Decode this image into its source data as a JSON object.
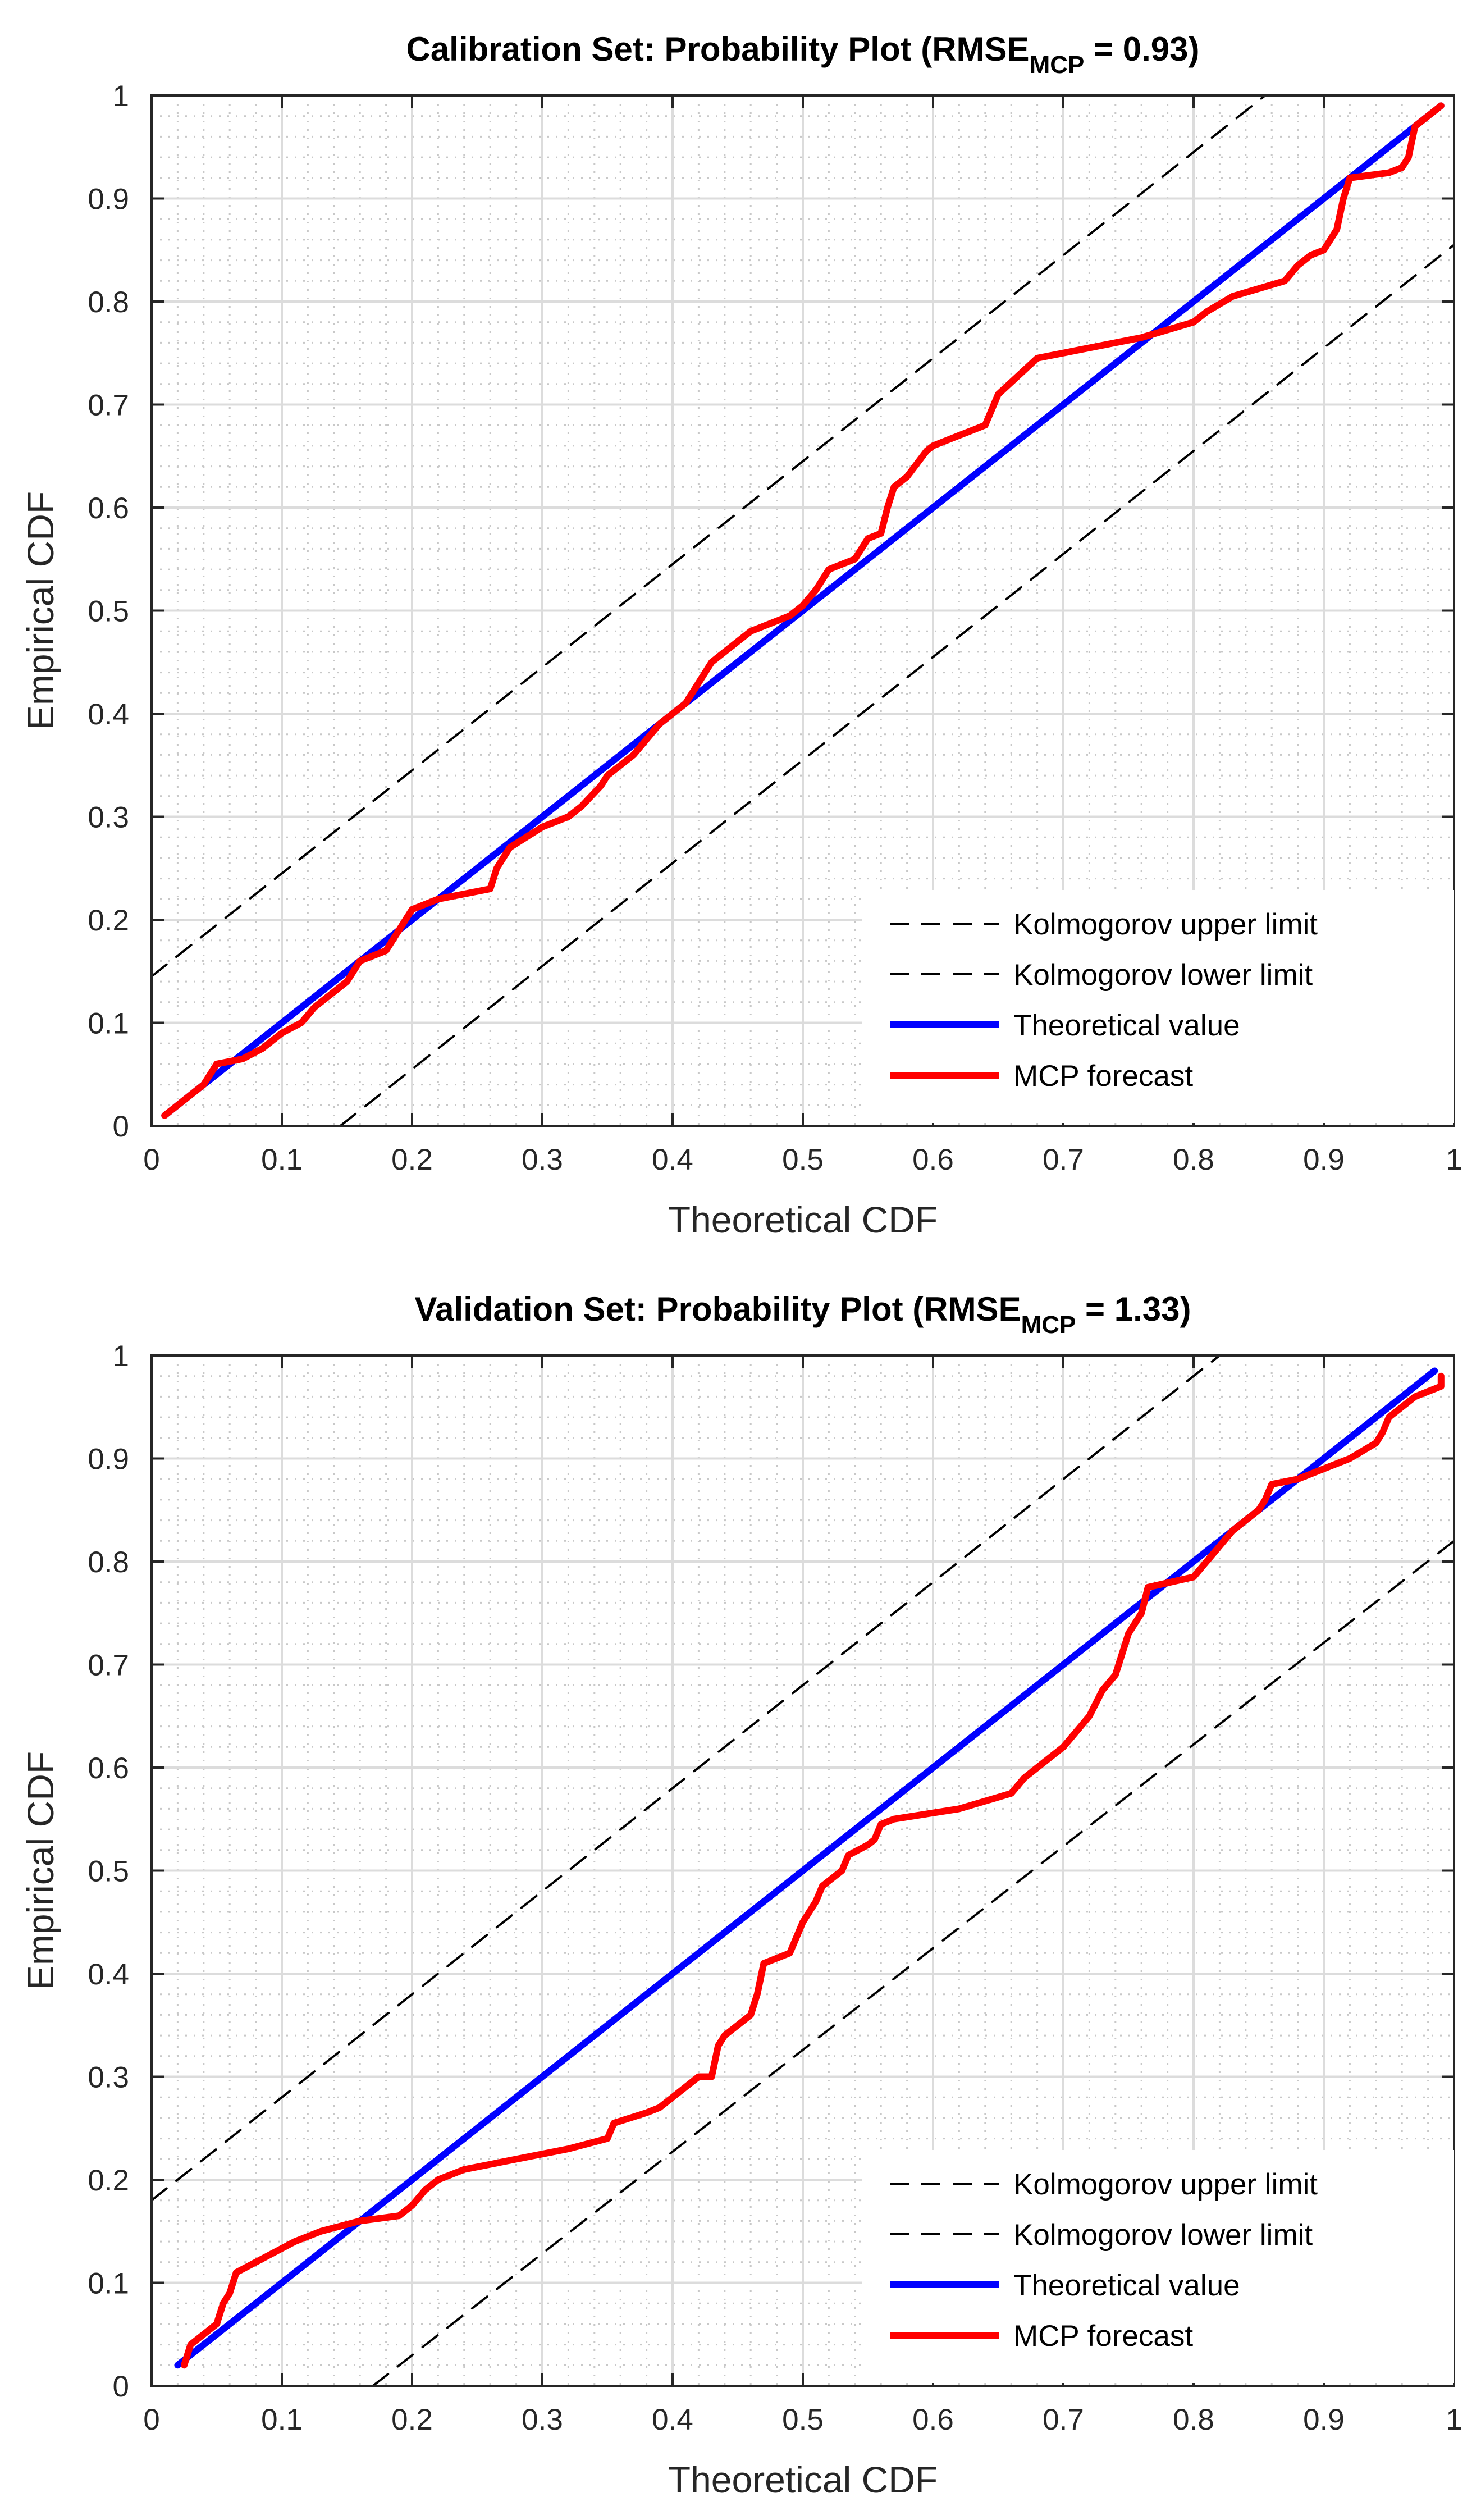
{
  "chart_data": [
    {
      "type": "line",
      "title": "Calibration Set: Probability Plot (RMSE",
      "title_sub": "MCP",
      "title_tail": " = 0.93)",
      "xlabel": "Theoretical CDF",
      "ylabel": "Empirical CDF",
      "xlim": [
        0,
        1
      ],
      "ylim": [
        0,
        1
      ],
      "xticks": [
        "0",
        "0.1",
        "0.2",
        "0.3",
        "0.4",
        "0.5",
        "0.6",
        "0.7",
        "0.8",
        "0.9",
        "1"
      ],
      "yticks": [
        "0",
        "0.1",
        "0.2",
        "0.3",
        "0.4",
        "0.5",
        "0.6",
        "0.7",
        "0.8",
        "0.9",
        "1"
      ],
      "grid": true,
      "legend_position": "bottom-right",
      "series": [
        {
          "name": "Kolmogorov upper limit",
          "color": "#000000",
          "style": "dashed",
          "x": [
            0,
            0.855
          ],
          "y": [
            0.145,
            1.0
          ]
        },
        {
          "name": "Kolmogorov lower limit",
          "color": "#000000",
          "style": "dashed",
          "x": [
            0.145,
            1.0
          ],
          "y": [
            0.0,
            0.855
          ]
        },
        {
          "name": "Theoretical value",
          "color": "#0000ff",
          "style": "solid",
          "x": [
            0.01,
            0.99
          ],
          "y": [
            0.01,
            0.99
          ]
        },
        {
          "name": "MCP forecast",
          "color": "#ff0000",
          "style": "solid",
          "x": [
            0.01,
            0.02,
            0.04,
            0.045,
            0.05,
            0.07,
            0.085,
            0.095,
            0.1,
            0.115,
            0.125,
            0.13,
            0.14,
            0.15,
            0.16,
            0.18,
            0.195,
            0.2,
            0.22,
            0.26,
            0.265,
            0.275,
            0.3,
            0.32,
            0.33,
            0.345,
            0.35,
            0.36,
            0.37,
            0.39,
            0.4,
            0.41,
            0.42,
            0.43,
            0.46,
            0.49,
            0.5,
            0.51,
            0.52,
            0.54,
            0.545,
            0.55,
            0.56,
            0.565,
            0.57,
            0.58,
            0.595,
            0.6,
            0.62,
            0.63,
            0.64,
            0.65,
            0.68,
            0.76,
            0.8,
            0.81,
            0.83,
            0.87,
            0.88,
            0.89,
            0.9,
            0.905,
            0.91,
            0.915,
            0.92,
            0.95,
            0.96,
            0.965,
            0.97,
            0.98,
            0.99
          ],
          "y": [
            0.01,
            0.02,
            0.04,
            0.05,
            0.06,
            0.065,
            0.075,
            0.085,
            0.09,
            0.1,
            0.115,
            0.12,
            0.13,
            0.14,
            0.16,
            0.17,
            0.2,
            0.21,
            0.22,
            0.23,
            0.25,
            0.27,
            0.29,
            0.3,
            0.31,
            0.33,
            0.34,
            0.35,
            0.36,
            0.39,
            0.4,
            0.41,
            0.43,
            0.45,
            0.48,
            0.495,
            0.505,
            0.52,
            0.54,
            0.55,
            0.56,
            0.57,
            0.575,
            0.6,
            0.62,
            0.63,
            0.655,
            0.66,
            0.67,
            0.675,
            0.68,
            0.71,
            0.745,
            0.765,
            0.78,
            0.79,
            0.805,
            0.82,
            0.835,
            0.845,
            0.85,
            0.86,
            0.87,
            0.9,
            0.92,
            0.925,
            0.93,
            0.94,
            0.97,
            0.98,
            0.99
          ]
        }
      ]
    },
    {
      "type": "line",
      "title": "Validation Set: Probability Plot (RMSE",
      "title_sub": "MCP",
      "title_tail": " = 1.33)",
      "xlabel": "Theoretical CDF",
      "ylabel": "Empirical CDF",
      "xlim": [
        0,
        1
      ],
      "ylim": [
        0,
        1
      ],
      "xticks": [
        "0",
        "0.1",
        "0.2",
        "0.3",
        "0.4",
        "0.5",
        "0.6",
        "0.7",
        "0.8",
        "0.9",
        "1"
      ],
      "yticks": [
        "0",
        "0.1",
        "0.2",
        "0.3",
        "0.4",
        "0.5",
        "0.6",
        "0.7",
        "0.8",
        "0.9",
        "1"
      ],
      "grid": true,
      "legend_position": "bottom-right",
      "series": [
        {
          "name": "Kolmogorov upper limit",
          "color": "#000000",
          "style": "dashed",
          "x": [
            0,
            0.82
          ],
          "y": [
            0.18,
            1.0
          ]
        },
        {
          "name": "Kolmogorov lower limit",
          "color": "#000000",
          "style": "dashed",
          "x": [
            0.17,
            1.0
          ],
          "y": [
            0.0,
            0.82
          ]
        },
        {
          "name": "Theoretical value",
          "color": "#0000ff",
          "style": "solid",
          "x": [
            0.02,
            0.985
          ],
          "y": [
            0.02,
            0.985
          ]
        },
        {
          "name": "MCP forecast",
          "color": "#ff0000",
          "style": "solid",
          "x": [
            0.025,
            0.03,
            0.04,
            0.05,
            0.055,
            0.06,
            0.065,
            0.11,
            0.13,
            0.16,
            0.19,
            0.2,
            0.21,
            0.22,
            0.24,
            0.32,
            0.35,
            0.355,
            0.38,
            0.39,
            0.4,
            0.42,
            0.43,
            0.435,
            0.44,
            0.45,
            0.46,
            0.465,
            0.47,
            0.49,
            0.5,
            0.51,
            0.515,
            0.52,
            0.53,
            0.535,
            0.55,
            0.555,
            0.56,
            0.57,
            0.62,
            0.66,
            0.67,
            0.68,
            0.7,
            0.72,
            0.73,
            0.74,
            0.745,
            0.75,
            0.76,
            0.765,
            0.8,
            0.81,
            0.82,
            0.83,
            0.835,
            0.84,
            0.85,
            0.855,
            0.86,
            0.88,
            0.9,
            0.92,
            0.94,
            0.945,
            0.95,
            0.97,
            0.99,
            0.99
          ],
          "y": [
            0.02,
            0.04,
            0.05,
            0.06,
            0.08,
            0.09,
            0.11,
            0.14,
            0.15,
            0.16,
            0.165,
            0.175,
            0.19,
            0.2,
            0.21,
            0.23,
            0.24,
            0.255,
            0.265,
            0.27,
            0.28,
            0.3,
            0.3,
            0.33,
            0.34,
            0.35,
            0.36,
            0.38,
            0.41,
            0.42,
            0.45,
            0.47,
            0.485,
            0.49,
            0.5,
            0.515,
            0.525,
            0.53,
            0.545,
            0.55,
            0.56,
            0.575,
            0.59,
            0.6,
            0.62,
            0.65,
            0.675,
            0.69,
            0.71,
            0.73,
            0.75,
            0.775,
            0.785,
            0.8,
            0.815,
            0.83,
            0.835,
            0.84,
            0.85,
            0.86,
            0.875,
            0.88,
            0.89,
            0.9,
            0.915,
            0.925,
            0.94,
            0.96,
            0.97,
            0.98
          ]
        }
      ]
    }
  ]
}
